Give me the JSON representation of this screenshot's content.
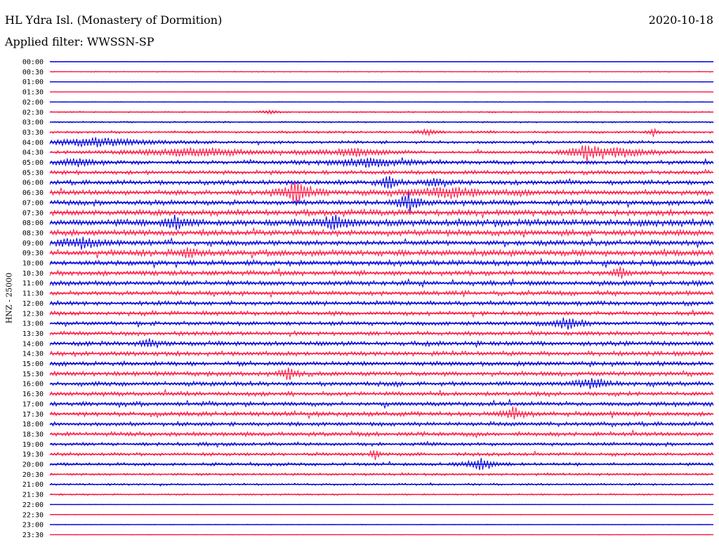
{
  "header": {
    "station": "HL Ydra Isl. (Monastery of Dormition)",
    "date": "2020-10-18",
    "filter": "Applied filter: WWSSN-SP"
  },
  "colors": {
    "odd_trace": "#0000dd",
    "even_trace": "#ff1744",
    "background": "#ffffff"
  },
  "chart_data": {
    "type": "helicorder",
    "ylabel": "HNZ - 25000",
    "time_labels": [
      "00:00",
      "00:30",
      "01:00",
      "01:30",
      "02:00",
      "02:30",
      "03:00",
      "03:30",
      "04:00",
      "04:30",
      "05:00",
      "05:30",
      "06:00",
      "06:30",
      "07:00",
      "07:30",
      "08:00",
      "08:30",
      "09:00",
      "09:30",
      "10:00",
      "10:30",
      "11:00",
      "11:30",
      "12:00",
      "12:30",
      "13:00",
      "13:30",
      "14:00",
      "14:30",
      "15:00",
      "15:30",
      "16:00",
      "16:30",
      "17:00",
      "17:30",
      "18:00",
      "18:30",
      "19:00",
      "19:30",
      "20:00",
      "20:30",
      "21:00",
      "21:30",
      "22:00",
      "22:30",
      "23:00",
      "23:30"
    ],
    "trace_colors": [
      "blue",
      "red"
    ],
    "noise_level": [
      0.2,
      0.5,
      0.3,
      0.2,
      0.4,
      0.8,
      0.9,
      1.4,
      1.6,
      1.7,
      2.2,
      2.4,
      2.6,
      3.0,
      3.0,
      3.4,
      3.8,
      3.4,
      3.0,
      3.6,
      3.0,
      2.8,
      2.8,
      2.6,
      2.6,
      2.4,
      2.4,
      2.4,
      2.6,
      2.6,
      2.6,
      2.8,
      2.6,
      2.4,
      2.4,
      2.6,
      2.4,
      2.4,
      2.0,
      2.0,
      1.8,
      1.4,
      1.2,
      1.0,
      0.3,
      0.4,
      0.4,
      0.3
    ],
    "events": [
      {
        "row": 5,
        "x": 0.33,
        "amp": 3,
        "dur": 0.012
      },
      {
        "row": 7,
        "x": 0.57,
        "amp": 5,
        "dur": 0.012
      },
      {
        "row": 7,
        "x": 0.91,
        "amp": 6,
        "dur": 0.006
      },
      {
        "row": 8,
        "x": 0.07,
        "amp": 6,
        "dur": 0.07
      },
      {
        "row": 9,
        "x": 0.22,
        "amp": 6,
        "dur": 0.08
      },
      {
        "row": 9,
        "x": 0.46,
        "amp": 6,
        "dur": 0.04
      },
      {
        "row": 9,
        "x": 0.81,
        "amp": 10,
        "dur": 0.02
      },
      {
        "row": 9,
        "x": 0.86,
        "amp": 6,
        "dur": 0.05
      },
      {
        "row": 10,
        "x": 0.04,
        "amp": 6,
        "dur": 0.02
      },
      {
        "row": 10,
        "x": 0.48,
        "amp": 6,
        "dur": 0.05
      },
      {
        "row": 12,
        "x": 0.51,
        "amp": 12,
        "dur": 0.01
      },
      {
        "row": 12,
        "x": 0.58,
        "amp": 8,
        "dur": 0.01
      },
      {
        "row": 13,
        "x": 0.37,
        "amp": 14,
        "dur": 0.02
      },
      {
        "row": 13,
        "x": 0.6,
        "amp": 7,
        "dur": 0.05
      },
      {
        "row": 14,
        "x": 0.54,
        "amp": 12,
        "dur": 0.015
      },
      {
        "row": 16,
        "x": 0.19,
        "amp": 9,
        "dur": 0.015
      },
      {
        "row": 16,
        "x": 0.43,
        "amp": 9,
        "dur": 0.02
      },
      {
        "row": 18,
        "x": 0.05,
        "amp": 7,
        "dur": 0.03
      },
      {
        "row": 19,
        "x": 0.21,
        "amp": 8,
        "dur": 0.01
      },
      {
        "row": 21,
        "x": 0.86,
        "amp": 8,
        "dur": 0.01
      },
      {
        "row": 26,
        "x": 0.78,
        "amp": 8,
        "dur": 0.02
      },
      {
        "row": 28,
        "x": 0.15,
        "amp": 8,
        "dur": 0.01
      },
      {
        "row": 31,
        "x": 0.36,
        "amp": 9,
        "dur": 0.01
      },
      {
        "row": 32,
        "x": 0.82,
        "amp": 7,
        "dur": 0.02
      },
      {
        "row": 35,
        "x": 0.7,
        "amp": 11,
        "dur": 0.01
      },
      {
        "row": 39,
        "x": 0.49,
        "amp": 10,
        "dur": 0.004
      },
      {
        "row": 40,
        "x": 0.65,
        "amp": 8,
        "dur": 0.02
      }
    ]
  }
}
